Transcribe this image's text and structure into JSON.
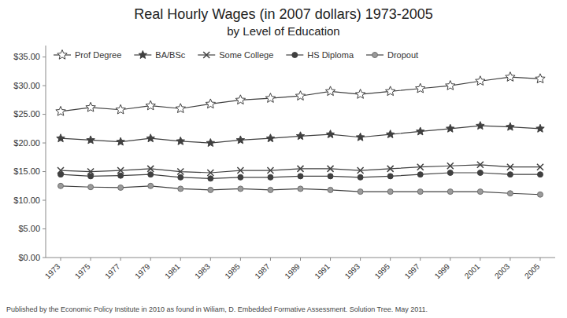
{
  "chart_data": {
    "type": "line",
    "title": "Real Hourly Wages (in 2007 dollars) 1973-2005",
    "subtitle": "by Level of Education",
    "annotations": [
      "Published by the Economic Policy Institute in 2010 as found in Wiliam, D.  Embedded Formative Assessment.  Solution Tree.  May 2011."
    ],
    "x": [
      1973,
      1975,
      1977,
      1979,
      1981,
      1983,
      1985,
      1987,
      1989,
      1991,
      1993,
      1995,
      1997,
      1999,
      2001,
      2003,
      2005
    ],
    "series": [
      {
        "name": "Prof Degree",
        "marker": "star-open",
        "values": [
          25.5,
          26.2,
          25.8,
          26.5,
          26.0,
          26.8,
          27.5,
          27.8,
          28.2,
          29.0,
          28.5,
          29.0,
          29.5,
          30.0,
          30.8,
          31.5,
          31.2
        ]
      },
      {
        "name": "BA/BSc",
        "marker": "star",
        "values": [
          20.8,
          20.5,
          20.2,
          20.8,
          20.3,
          20.0,
          20.5,
          20.8,
          21.2,
          21.5,
          21.0,
          21.5,
          22.0,
          22.5,
          23.0,
          22.8,
          22.5
        ]
      },
      {
        "name": "Some College",
        "marker": "x",
        "values": [
          15.2,
          15.0,
          15.2,
          15.5,
          15.0,
          14.8,
          15.2,
          15.2,
          15.5,
          15.5,
          15.2,
          15.5,
          15.8,
          16.0,
          16.2,
          15.8,
          15.8
        ]
      },
      {
        "name": "HS Diploma",
        "marker": "circle",
        "values": [
          14.5,
          14.2,
          14.3,
          14.5,
          14.0,
          13.8,
          14.0,
          14.0,
          14.2,
          14.2,
          14.0,
          14.2,
          14.5,
          14.8,
          14.8,
          14.5,
          14.5
        ]
      },
      {
        "name": "Dropout",
        "marker": "circle-light",
        "values": [
          12.5,
          12.3,
          12.2,
          12.5,
          12.0,
          11.8,
          12.0,
          11.8,
          12.0,
          11.8,
          11.5,
          11.5,
          11.5,
          11.5,
          11.5,
          11.2,
          11.0
        ]
      }
    ],
    "color": "#404040",
    "xlim": [
      1972,
      2006
    ],
    "xticks": [
      1973,
      1975,
      1977,
      1979,
      1981,
      1983,
      1985,
      1987,
      1989,
      1991,
      1993,
      1995,
      1997,
      1999,
      2001,
      2003,
      2005
    ],
    "ylim": [
      0,
      37
    ],
    "yticks": [
      {
        "value": 0,
        "label": "$0.00"
      },
      {
        "value": 5,
        "label": "$5.00"
      },
      {
        "value": 10,
        "label": "$10.00"
      },
      {
        "value": 15,
        "label": "$15.00"
      },
      {
        "value": 20,
        "label": "$20.00"
      },
      {
        "value": 25,
        "label": "$25.00"
      },
      {
        "value": 30,
        "label": "$30.00"
      },
      {
        "value": 35,
        "label": "$35.00"
      }
    ],
    "grid": false,
    "legend": "upper left"
  }
}
